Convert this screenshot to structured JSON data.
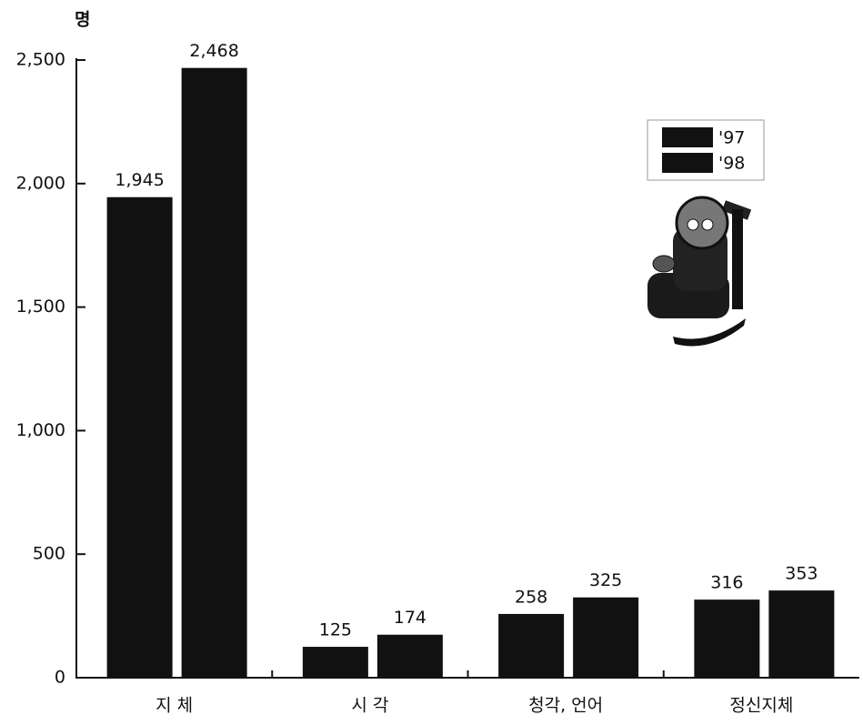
{
  "chart_data": {
    "type": "bar",
    "y_unit": "명",
    "categories": [
      "지 체",
      "시 각",
      "청각, 언어",
      "정신지체"
    ],
    "series": [
      {
        "name": "'97",
        "color": "#111111",
        "values": [
          1945,
          125,
          258,
          316
        ],
        "value_labels": [
          "1,945",
          "125",
          "258",
          "316"
        ]
      },
      {
        "name": "'98",
        "color": "#111111",
        "values": [
          2468,
          174,
          325,
          353
        ],
        "value_labels": [
          "2,468",
          "174",
          "325",
          "353"
        ]
      }
    ],
    "ylim": [
      0,
      2500
    ],
    "yticks": [
      0,
      500,
      {
        "value": 1000,
        "label": "1,000"
      },
      {
        "value": 1500,
        "label": "1,500"
      },
      {
        "value": 2000,
        "label": "2,000"
      },
      {
        "value": 2500,
        "label": "2,500"
      }
    ],
    "legend": "upper right"
  }
}
